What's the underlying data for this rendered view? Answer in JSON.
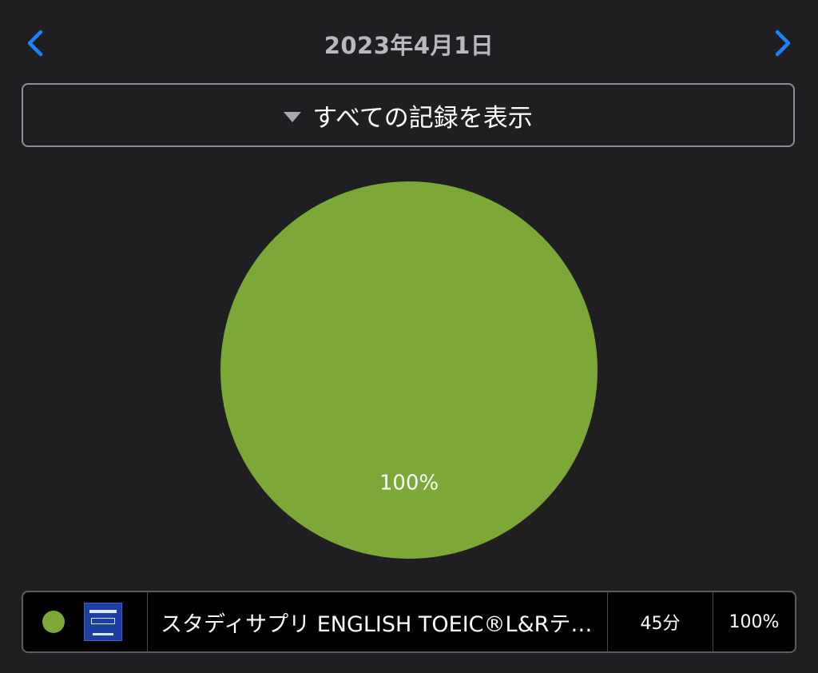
{
  "header": {
    "date": "2023年4月1日",
    "prev_icon": "chevron-left-icon",
    "next_icon": "chevron-right-icon",
    "accent_color": "#1a84ff"
  },
  "filter": {
    "label": "すべての記録を表示",
    "icon": "caret-down-icon"
  },
  "chart_data": {
    "type": "pie",
    "slices": [
      {
        "label": "スタディサプリ ENGLISH TOEIC®L&Rテ…",
        "value": 100,
        "data_label": "100%",
        "color": "#7ba837"
      }
    ]
  },
  "legend": {
    "items": [
      {
        "color": "#7ba837",
        "app_icon": "app-icon-studysapuri",
        "name": "スタディサプリ ENGLISH TOEIC®L&Rテ…",
        "time": "45分",
        "percent": "100%"
      }
    ]
  }
}
